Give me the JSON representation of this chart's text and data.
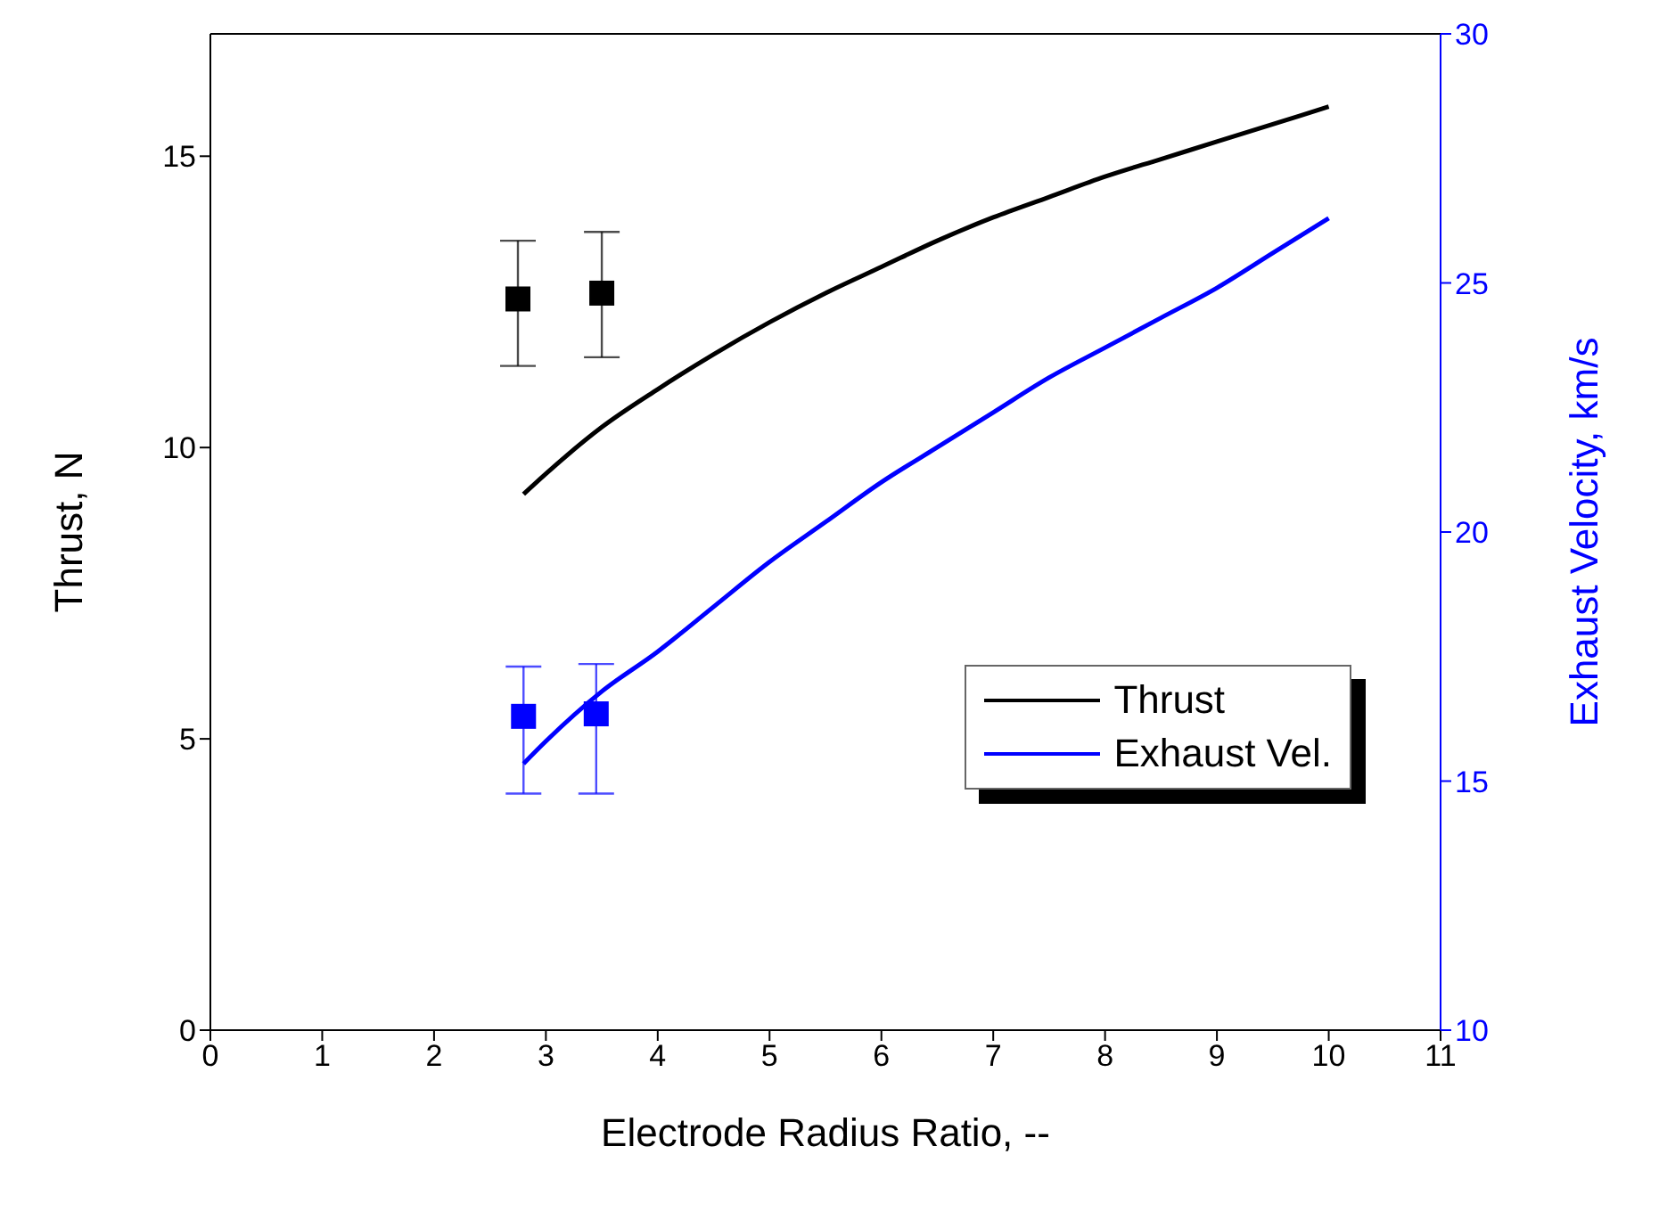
{
  "chart_data": {
    "type": "line",
    "xlabel": "Electrode Radius Ratio, --",
    "ylabel": "Thrust, N",
    "y2label": "Exhaust Velocity, km/s",
    "xlim": [
      0,
      11
    ],
    "xticks": [
      0,
      1,
      2,
      3,
      4,
      5,
      6,
      7,
      8,
      9,
      10,
      11
    ],
    "ylim": [
      0,
      17.1
    ],
    "yticks": [
      0,
      5,
      10,
      15
    ],
    "y2lim": [
      10,
      30
    ],
    "y2ticks": [
      10,
      15,
      20,
      25,
      30
    ],
    "legend": "right",
    "grid": false,
    "series": [
      {
        "name": "Thrust",
        "color": "#000000",
        "marker": "none",
        "x": [
          2.8,
          3,
          3.5,
          4,
          4.5,
          5,
          5.5,
          6,
          6.5,
          7,
          7.5,
          8,
          8.5,
          9,
          9.5,
          10
        ],
        "values": [
          9.2,
          9.55,
          10.35,
          11.0,
          11.6,
          12.15,
          12.65,
          13.1,
          13.55,
          13.95,
          14.3,
          14.65,
          14.95,
          15.25,
          15.55,
          15.85
        ]
      },
      {
        "name": "Exhaust Vel.",
        "axis": "y2",
        "color": "#0000ff",
        "marker": "none",
        "x": [
          2.8,
          3,
          3.5,
          4,
          4.5,
          5,
          5.5,
          6,
          6.5,
          7,
          7.5,
          8,
          8.5,
          9,
          9.5,
          10
        ],
        "values": [
          15.35,
          15.8,
          16.8,
          17.6,
          18.5,
          19.4,
          20.2,
          21.0,
          21.7,
          22.4,
          23.1,
          23.7,
          24.3,
          24.9,
          25.6,
          26.3
        ]
      },
      {
        "type": "scatter",
        "color": "#000000",
        "marker": "square",
        "x": [
          2.75,
          3.5
        ],
        "values": [
          12.55,
          12.65
        ],
        "errors": [
          [
            11.4,
            13.55
          ],
          [
            11.55,
            13.7
          ]
        ]
      },
      {
        "type": "scatter",
        "axis": "y2",
        "color": "#0000ff",
        "marker": "square",
        "x": [
          2.8,
          3.45
        ],
        "values": [
          16.3,
          16.35
        ],
        "errors": [
          [
            14.75,
            17.3
          ],
          [
            14.75,
            17.35
          ]
        ]
      }
    ]
  }
}
